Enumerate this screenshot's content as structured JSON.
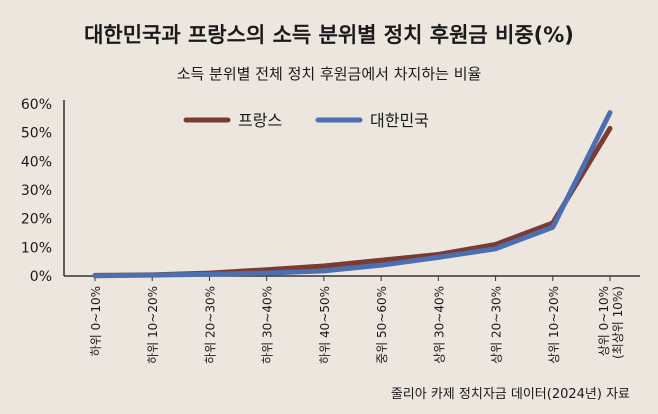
{
  "chart_data": {
    "type": "line",
    "title": "대한민국과 프랑스의 소득 분위별 정치 후원금 비중(%)",
    "subtitle": "소득 분위별 전체 정치 후원금에서 차지하는 비율",
    "source": "줄리아 카제 정치자금 데이터(2024년) 자료",
    "xlabel": "",
    "ylabel": "",
    "ylim": [
      0,
      60
    ],
    "y_ticks": [
      "0%",
      "10%",
      "20%",
      "30%",
      "40%",
      "50%",
      "60%"
    ],
    "y_tick_values": [
      0,
      10,
      20,
      30,
      40,
      50,
      60
    ],
    "grid": false,
    "legend_placement": "top-left",
    "categories": [
      "하위 0~10%",
      "하위 10~20%",
      "하위 20~30%",
      "하위 30~40%",
      "하위 40~50%",
      "중위 50~60%",
      "상위 30~40%",
      "상위 20~30%",
      "상위 10~20%",
      "상위 0~10%\n(최상위 10%)"
    ],
    "series": [
      {
        "name": "프랑스",
        "color": "#7a3b33",
        "values": [
          0.2,
          0.4,
          1.0,
          2.2,
          3.5,
          5.5,
          7.5,
          11.0,
          18.5,
          51.5
        ]
      },
      {
        "name": "대한민국",
        "color": "#4b6fb0",
        "values": [
          0.1,
          0.3,
          0.6,
          1.0,
          1.8,
          3.8,
          6.5,
          9.5,
          17.0,
          57.0
        ]
      }
    ]
  }
}
